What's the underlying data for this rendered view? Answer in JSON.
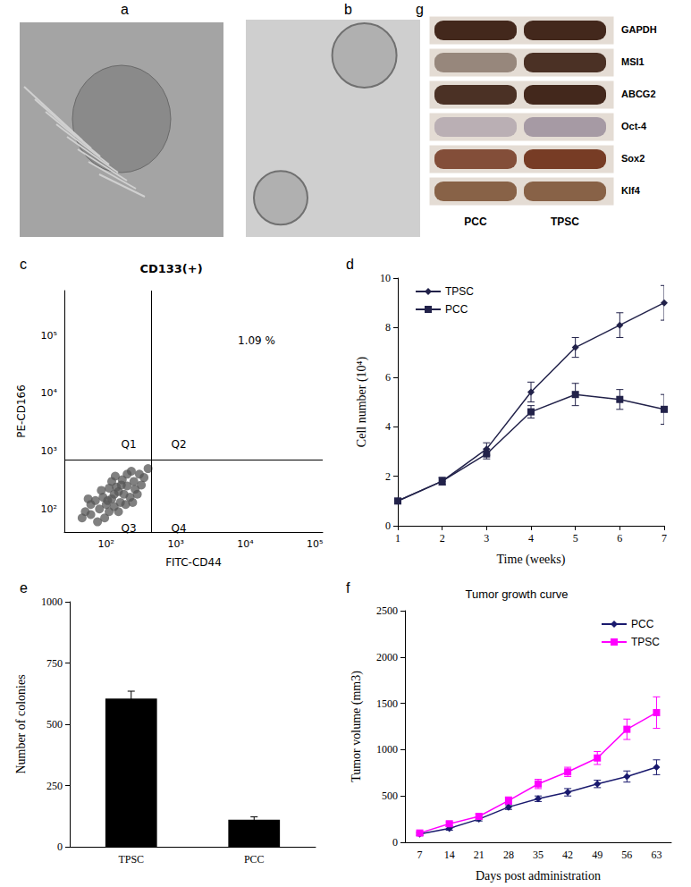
{
  "images": [
    {
      "panel": "a"
    },
    {
      "panel": "b"
    }
  ],
  "blot": {
    "panel": "g",
    "lanes": [
      "PCC",
      "TPSC"
    ],
    "rows": [
      {
        "label": "GAPDH",
        "color": "#3a1e12",
        "band_intensity": [
          0.95,
          0.95
        ]
      },
      {
        "label": "MSI1",
        "color": "#3a1e12",
        "band_intensity": [
          0.45,
          0.9
        ]
      },
      {
        "label": "ABCG2",
        "color": "#3a1e12",
        "band_intensity": [
          0.9,
          0.95
        ]
      },
      {
        "label": "Oct-4",
        "color": "#5a4a6a",
        "band_intensity": [
          0.3,
          0.45
        ]
      },
      {
        "label": "Sox2",
        "color": "#6a2a12",
        "band_intensity": [
          0.8,
          0.9
        ]
      },
      {
        "label": "Klf4",
        "color": "#6a3a18",
        "band_intensity": [
          0.75,
          0.75
        ]
      }
    ]
  },
  "chart_data": [
    {
      "panel": "c",
      "type": "scatter",
      "title": "CD133(+)",
      "x_label": "FITC-CD44",
      "y_label": "PE-CD166",
      "log": true,
      "xlim": [
        25,
        130000
      ],
      "ylim": [
        40,
        600000
      ],
      "xticks": [
        {
          "value": 100,
          "label": "10²"
        },
        {
          "value": 1000,
          "label": "10³"
        },
        {
          "value": 10000,
          "label": "10⁴"
        },
        {
          "value": 100000,
          "label": "10⁵"
        }
      ],
      "yticks": [
        {
          "value": 100,
          "label": "10²"
        },
        {
          "value": 1000,
          "label": "10³"
        },
        {
          "value": 10000,
          "label": "10⁴"
        },
        {
          "value": 100000,
          "label": "10⁵"
        }
      ],
      "gates": {
        "x": 450,
        "y": 700
      },
      "quadrant_labels": [
        "Q1",
        "Q2",
        "Q3",
        "Q4"
      ],
      "annotation": "1.09 %",
      "color": "#555555",
      "points": {
        "x": [
          60,
          80,
          100,
          120,
          90,
          150,
          200,
          130,
          70,
          110,
          160,
          250,
          300,
          180,
          140,
          50,
          95,
          220,
          260,
          120,
          85,
          170,
          350,
          400,
          200,
          75,
          130,
          105,
          190,
          60,
          45,
          280,
          150,
          230,
          320,
          110,
          165,
          240,
          55,
          135
        ],
        "y": [
          80,
          100,
          120,
          150,
          160,
          200,
          250,
          110,
          140,
          90,
          130,
          300,
          400,
          180,
          240,
          90,
          70,
          160,
          220,
          300,
          210,
          320,
          350,
          500,
          400,
          60,
          180,
          140,
          120,
          120,
          70,
          180,
          90,
          450,
          260,
          230,
          260,
          130,
          150,
          370
        ]
      }
    },
    {
      "panel": "d",
      "type": "line",
      "x_label": "Time (weeks)",
      "y_label": "Cell number (10⁴)",
      "x": [
        1,
        2,
        3,
        4,
        5,
        6,
        7
      ],
      "xlim": [
        1,
        7
      ],
      "xticks": [
        1,
        2,
        3,
        4,
        5,
        6,
        7
      ],
      "ylim": [
        0,
        10
      ],
      "yticks": [
        0,
        2,
        4,
        6,
        8,
        10
      ],
      "grid": false,
      "legend": "upper left",
      "series": [
        {
          "name": "TPSC",
          "color": "#22224a",
          "marker": "diamond",
          "values": [
            1,
            1.8,
            3.1,
            5.4,
            7.2,
            8.1,
            9.0
          ],
          "errors": [
            0.1,
            0.15,
            0.25,
            0.4,
            0.4,
            0.5,
            0.7
          ]
        },
        {
          "name": "PCC",
          "color": "#22224a",
          "marker": "square",
          "values": [
            1,
            1.8,
            2.9,
            4.6,
            5.3,
            5.1,
            4.7
          ],
          "errors": [
            0.1,
            0.15,
            0.2,
            0.25,
            0.45,
            0.4,
            0.6
          ]
        }
      ]
    },
    {
      "panel": "e",
      "type": "bar",
      "y_label": "Number of colonies",
      "categories": [
        "TPSC",
        "PCC"
      ],
      "values": [
        605,
        110
      ],
      "errors": [
        30,
        12
      ],
      "color": "#000000",
      "ylim": [
        0,
        1000
      ],
      "yticks": [
        0,
        250,
        500,
        750,
        1000
      ],
      "grid": false
    },
    {
      "panel": "f",
      "type": "line",
      "title": "Tumor growth curve",
      "x_label": "Days post administration",
      "y_label": "Tumor volume (mm3)",
      "categories": [
        "7",
        "14",
        "21",
        "28",
        "35",
        "42",
        "49",
        "56",
        "63"
      ],
      "ylim": [
        0,
        2500
      ],
      "yticks": [
        0,
        500,
        1000,
        1500,
        2000,
        2500
      ],
      "grid": false,
      "legend": "upper right",
      "series": [
        {
          "name": "PCC",
          "color": "#1a1a6e",
          "marker": "diamond",
          "values": [
            90,
            150,
            250,
            380,
            470,
            540,
            630,
            710,
            810
          ],
          "errors": [
            15,
            20,
            20,
            25,
            30,
            40,
            40,
            60,
            80
          ]
        },
        {
          "name": "TPSC",
          "color": "#ff00ff",
          "marker": "square",
          "values": [
            100,
            200,
            280,
            450,
            630,
            760,
            910,
            1220,
            1400
          ],
          "errors": [
            15,
            20,
            25,
            40,
            50,
            50,
            70,
            110,
            170
          ]
        }
      ]
    }
  ]
}
